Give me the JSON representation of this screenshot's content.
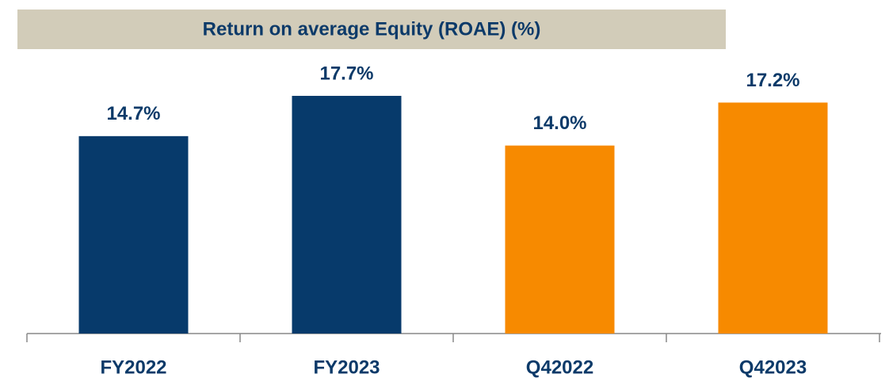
{
  "chart_data": {
    "type": "bar",
    "title": "Return on average Equity (ROAE) (%)",
    "categories": [
      "FY2022",
      "FY2023",
      "Q42022",
      "Q42023"
    ],
    "values": [
      14.7,
      17.7,
      14.0,
      17.2
    ],
    "value_labels": [
      "14.7%",
      "17.7%",
      "14.0%",
      "17.2%"
    ],
    "colors": [
      "#073a6b",
      "#073a6b",
      "#f78a00",
      "#f78a00"
    ],
    "ylim": [
      0,
      20
    ]
  }
}
